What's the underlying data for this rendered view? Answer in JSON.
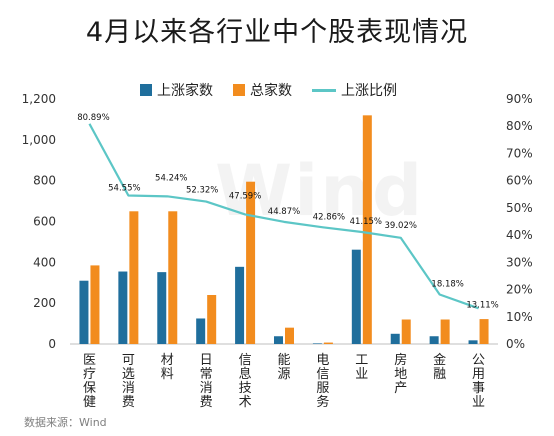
{
  "title": "4月以来各行业中个股表现情况",
  "source": "数据来源：Wind",
  "watermark": "Wind",
  "colors": {
    "bar_up": "#1f6e9c",
    "bar_total": "#f28c1e",
    "line_ratio": "#5cc6c6"
  },
  "chart_data": {
    "type": "bar",
    "title": "4月以来各行业中个股表现情况",
    "legend_position": "top",
    "grid": false,
    "categories": [
      "医疗保健",
      "可选消费",
      "材料",
      "日常消费",
      "信息技术",
      "能源",
      "电信服务",
      "工业",
      "房地产",
      "金融",
      "公用事业"
    ],
    "series": [
      {
        "name": "上涨家数",
        "kind": "bar",
        "axis": "left",
        "values": [
          310,
          355,
          352,
          125,
          378,
          38,
          3,
          462,
          50,
          38,
          18
        ]
      },
      {
        "name": "总家数",
        "kind": "bar",
        "axis": "left",
        "values": [
          385,
          650,
          650,
          240,
          795,
          80,
          7,
          1120,
          120,
          120,
          122
        ]
      },
      {
        "name": "上涨比例",
        "kind": "line",
        "axis": "right",
        "values": [
          80.89,
          54.55,
          54.24,
          52.32,
          47.59,
          44.87,
          42.86,
          41.15,
          39.02,
          18.18,
          13.11
        ],
        "labels": [
          "80.89%",
          "54.55%",
          "54.24%",
          "52.32%",
          "47.59%",
          "44.87%",
          "42.86%",
          "41.15%",
          "39.02%",
          "18.18%",
          "13.11%"
        ]
      }
    ],
    "y_left": {
      "min": 0,
      "max": 1200,
      "ticks": [
        "0",
        "200",
        "400",
        "600",
        "800",
        "1,000",
        "1,200"
      ]
    },
    "y_right": {
      "min": 0,
      "max": 90,
      "ticks": [
        "0%",
        "10%",
        "20%",
        "30%",
        "40%",
        "50%",
        "60%",
        "70%",
        "80%",
        "90%"
      ]
    }
  }
}
